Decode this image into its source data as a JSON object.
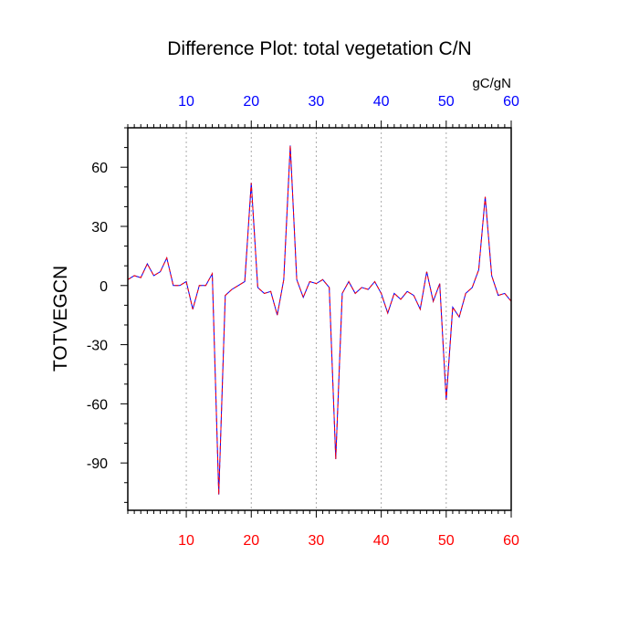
{
  "chart_data": {
    "type": "line",
    "title": "Difference Plot: total vegetation C/N",
    "units": "gC/gN",
    "ylabel": "TOTVEGCN",
    "xlim": [
      1,
      60
    ],
    "ylim": [
      -114,
      80
    ],
    "x_ticks": [
      10,
      20,
      30,
      40,
      50,
      60
    ],
    "y_ticks": [
      -90,
      -60,
      -30,
      0,
      30,
      60
    ],
    "grid": "vertical dotted",
    "bottom_tick_color": "#ff0000",
    "top_tick_color": "#0000ff",
    "series": [
      {
        "color": "#0000ff",
        "dash": "solid",
        "x": [
          1,
          2,
          3,
          4,
          5,
          6,
          7,
          8,
          9,
          10,
          11,
          12,
          13,
          14,
          15,
          16,
          17,
          18,
          19,
          20,
          21,
          22,
          23,
          24,
          25,
          26,
          27,
          28,
          29,
          30,
          31,
          32,
          33,
          34,
          35,
          36,
          37,
          38,
          39,
          40,
          41,
          42,
          43,
          44,
          45,
          46,
          47,
          48,
          49,
          50,
          51,
          52,
          53,
          54,
          55,
          56,
          57,
          58,
          59,
          60
        ],
        "values": [
          3,
          5,
          4,
          11,
          5,
          7,
          14,
          0,
          0,
          2,
          -12,
          0,
          0,
          6,
          -106,
          -5,
          -2,
          0,
          2,
          52,
          -1,
          -4,
          -3,
          -15,
          3,
          71,
          3,
          -6,
          2,
          1,
          3,
          -1,
          -88,
          -4,
          2,
          -4,
          -1,
          -2,
          2,
          -4,
          -14,
          -4,
          -7,
          -3,
          -5,
          -12,
          7,
          -8,
          1,
          -58,
          -11,
          -16,
          -4,
          -1,
          8,
          45,
          5,
          -5,
          -4,
          -8
        ]
      },
      {
        "color": "#ff0000",
        "dash": "dashed",
        "x": [
          1,
          2,
          3,
          4,
          5,
          6,
          7,
          8,
          9,
          10,
          11,
          12,
          13,
          14,
          15,
          16,
          17,
          18,
          19,
          20,
          21,
          22,
          23,
          24,
          25,
          26,
          27,
          28,
          29,
          30,
          31,
          32,
          33,
          34,
          35,
          36,
          37,
          38,
          39,
          40,
          41,
          42,
          43,
          44,
          45,
          46,
          47,
          48,
          49,
          50,
          51,
          52,
          53,
          54,
          55,
          56,
          57,
          58,
          59,
          60
        ],
        "values": [
          3,
          5,
          4,
          11,
          5,
          7,
          14,
          0,
          0,
          2,
          -12,
          0,
          0,
          6,
          -106,
          -5,
          -2,
          0,
          2,
          52,
          -1,
          -4,
          -3,
          -15,
          3,
          71,
          3,
          -6,
          2,
          1,
          3,
          -1,
          -88,
          -4,
          2,
          -4,
          -1,
          -2,
          2,
          -4,
          -14,
          -4,
          -7,
          -3,
          -5,
          -12,
          7,
          -8,
          1,
          -58,
          -11,
          -16,
          -4,
          -1,
          8,
          45,
          5,
          -5,
          -4,
          -8
        ]
      }
    ]
  }
}
